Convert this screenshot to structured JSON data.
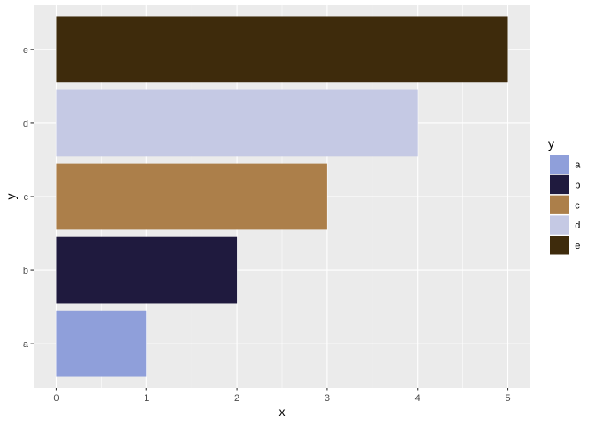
{
  "chart_data": {
    "type": "bar",
    "orientation": "horizontal",
    "categories": [
      "a",
      "b",
      "c",
      "d",
      "e"
    ],
    "values": [
      1,
      2,
      3,
      4,
      5
    ],
    "colors": [
      "#8F9FDA",
      "#1F1A3E",
      "#AC7F4A",
      "#C5C9E4",
      "#3E2B0C"
    ],
    "xlabel": "x",
    "ylabel": "y",
    "xlim": [
      -0.25,
      5.25
    ],
    "xticks": [
      "0",
      "1",
      "2",
      "3",
      "4",
      "5"
    ],
    "grid": true,
    "panel_background": "#EBEBEB",
    "grid_color": "#FFFFFF",
    "legend": {
      "title": "y",
      "position": "right",
      "items": [
        "a",
        "b",
        "c",
        "d",
        "e"
      ]
    }
  }
}
